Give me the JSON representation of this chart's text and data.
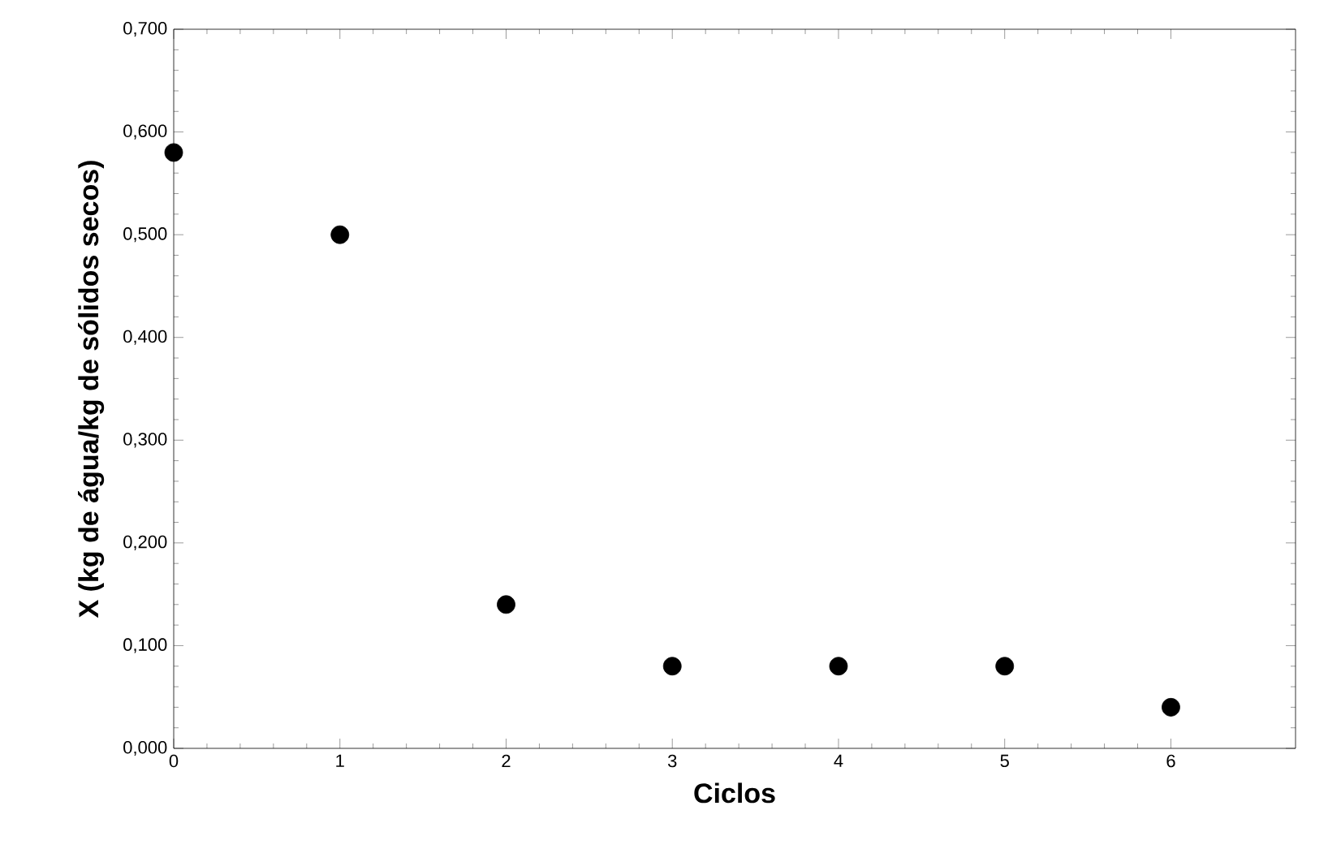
{
  "chart_data": {
    "type": "scatter",
    "xlabel": "Ciclos",
    "ylabel": "X (kg de água/kg de sólidos secos)",
    "x": [
      0,
      1,
      2,
      3,
      4,
      5,
      6
    ],
    "values": [
      0.58,
      0.5,
      0.14,
      0.08,
      0.08,
      0.08,
      0.04
    ],
    "color": "#000000",
    "marker": "circle",
    "xlim": [
      0,
      6.75
    ],
    "xticks": [
      0,
      1,
      2,
      3,
      4,
      5,
      6
    ],
    "ylim": [
      0,
      0.7
    ],
    "yticks": [
      {
        "value": 0,
        "label": "0,000"
      },
      {
        "value": 0.1,
        "label": "0,100"
      },
      {
        "value": 0.2,
        "label": "0,200"
      },
      {
        "value": 0.3,
        "label": "0,300"
      },
      {
        "value": 0.4,
        "label": "0,400"
      },
      {
        "value": 0.5,
        "label": "0,500"
      },
      {
        "value": 0.6,
        "label": "0,600"
      },
      {
        "value": 0.7,
        "label": "0,700"
      }
    ],
    "grid": false
  }
}
